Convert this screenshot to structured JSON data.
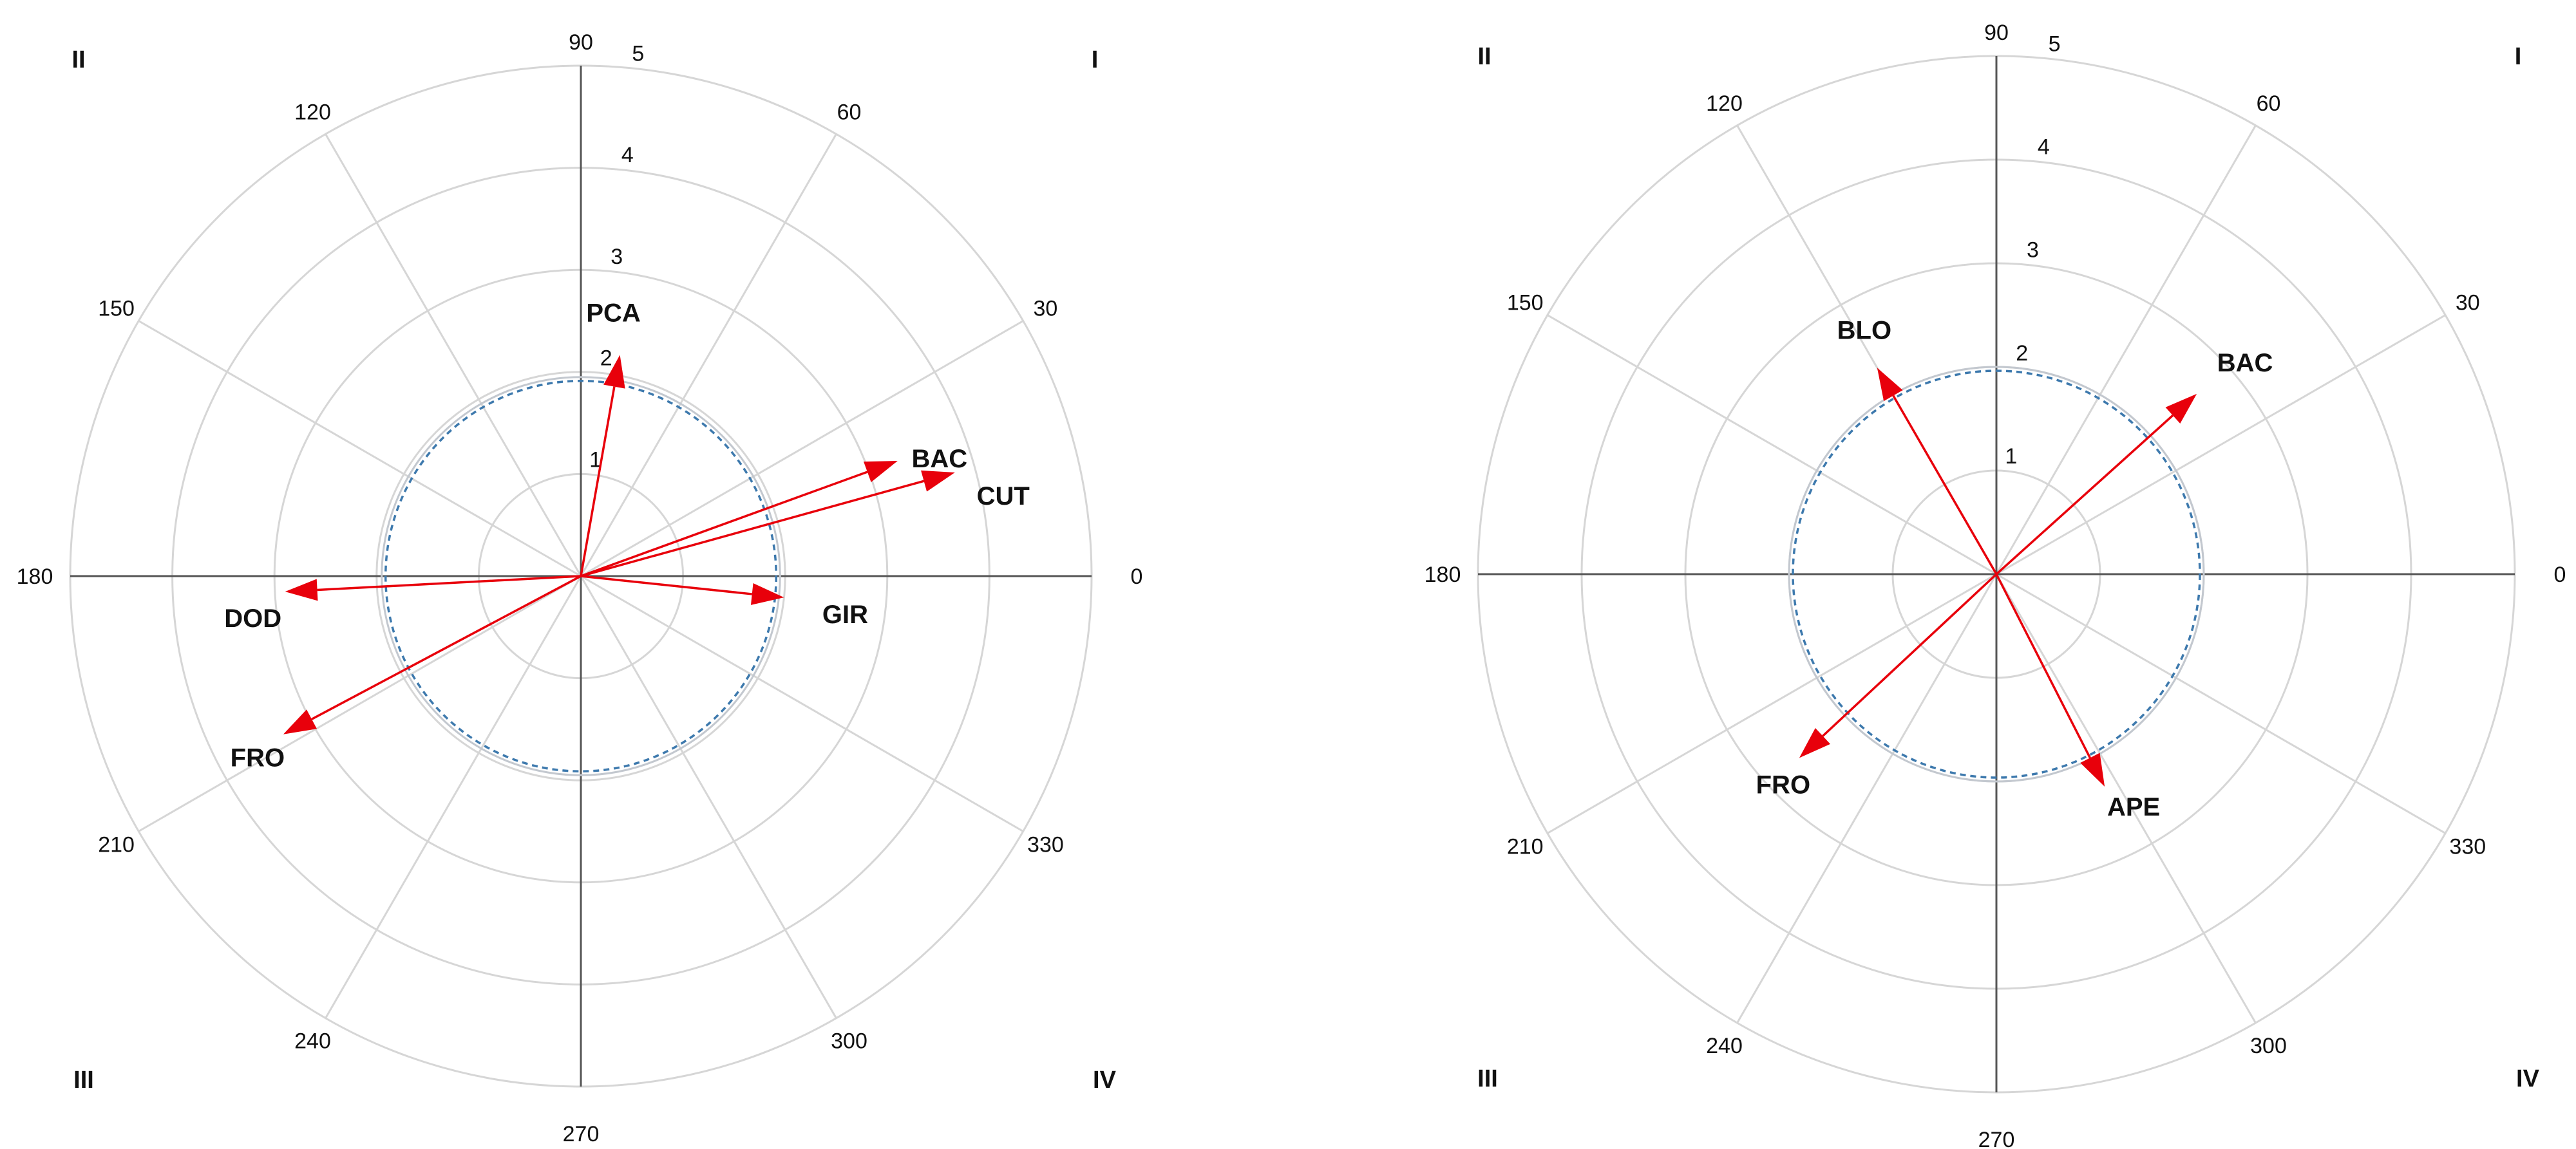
{
  "chart_data": [
    {
      "type": "polar-vector",
      "radial_range": [
        0,
        5
      ],
      "radial_ticks": [
        "1",
        "2",
        "3",
        "4",
        "5"
      ],
      "angle_ticks": [
        "0",
        "30",
        "60",
        "90",
        "120",
        "150",
        "180",
        "210",
        "240",
        "270",
        "300",
        "330"
      ],
      "quadrant_labels": [
        "I",
        "II",
        "III",
        "IV"
      ],
      "threshold_radius": 1.95,
      "vectors": [
        {
          "name": "PCA",
          "angle": 80,
          "length": 2.2
        },
        {
          "name": "BAC",
          "angle": 20,
          "length": 3.3
        },
        {
          "name": "CUT",
          "angle": 15.5,
          "length": 3.8
        },
        {
          "name": "DOD",
          "angle": 183,
          "length": 2.9
        },
        {
          "name": "FRO",
          "angle": 208,
          "length": 3.3
        },
        {
          "name": "GIR",
          "angle": 354,
          "length": 2.0
        }
      ]
    },
    {
      "type": "polar-vector",
      "radial_range": [
        0,
        5
      ],
      "radial_ticks": [
        "1",
        "2",
        "3",
        "4",
        "5"
      ],
      "angle_ticks": [
        "0",
        "30",
        "60",
        "90",
        "120",
        "150",
        "180",
        "210",
        "240",
        "270",
        "300",
        "330"
      ],
      "quadrant_labels": [
        "I",
        "II",
        "III",
        "IV"
      ],
      "threshold_radius": 2.0,
      "vectors": [
        {
          "name": "BLO",
          "angle": 120,
          "length": 2.3
        },
        {
          "name": "BAC",
          "angle": 42,
          "length": 2.6
        },
        {
          "name": "FRO",
          "angle": 223,
          "length": 2.6
        },
        {
          "name": "APE",
          "angle": 297,
          "length": 2.3
        }
      ]
    }
  ]
}
